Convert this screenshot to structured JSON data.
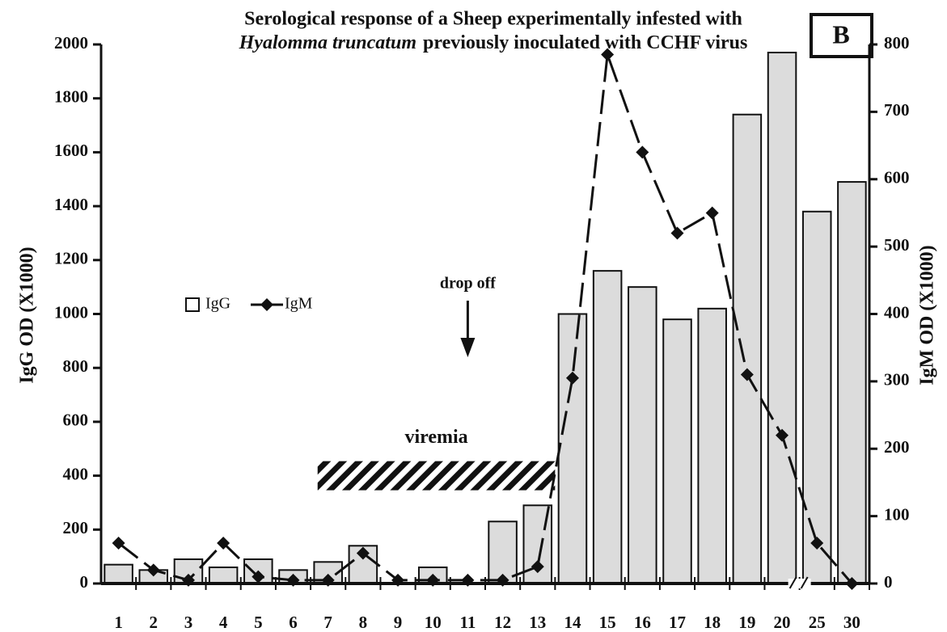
{
  "chart_data": {
    "type": "bar_line",
    "title_line1": "Serological response of a Sheep experimentally infested with",
    "title_species": "Hyalomma truncatum",
    "title_line2": "previously inoculated with CCHF virus",
    "panel_label": "B",
    "y_label": "IgG OD (X1000)",
    "y2_label": "IgM OD (X1000)",
    "annotations": {
      "drop_off": "drop off",
      "viremia": "viremia"
    },
    "categories": [
      "1",
      "2",
      "3",
      "4",
      "5",
      "6",
      "7",
      "8",
      "9",
      "10",
      "11",
      "12",
      "13",
      "14",
      "15",
      "16",
      "17",
      "18",
      "19",
      "20",
      "25",
      "30"
    ],
    "series": [
      {
        "name": "IgG",
        "type": "bar",
        "color": "#dcdcdc",
        "values": [
          70,
          50,
          90,
          60,
          90,
          50,
          80,
          140,
          0,
          60,
          0,
          230,
          290,
          1000,
          1160,
          1100,
          980,
          1020,
          1740,
          1970,
          1380,
          1490
        ]
      },
      {
        "name": "IgM",
        "type": "line",
        "axis": "y2",
        "color": "#111111",
        "values": [
          60,
          20,
          5,
          60,
          10,
          5,
          5,
          45,
          5,
          5,
          5,
          5,
          25,
          305,
          785,
          640,
          520,
          550,
          310,
          220,
          60,
          0
        ]
      }
    ],
    "ylim": [
      0,
      2000
    ],
    "yticks": [
      0,
      200,
      400,
      600,
      800,
      1000,
      1200,
      1400,
      1600,
      1800,
      2000
    ],
    "y2lim": [
      0,
      800
    ],
    "y2ticks": [
      0,
      100,
      200,
      300,
      400,
      500,
      600,
      700,
      800
    ],
    "legend": "left"
  }
}
